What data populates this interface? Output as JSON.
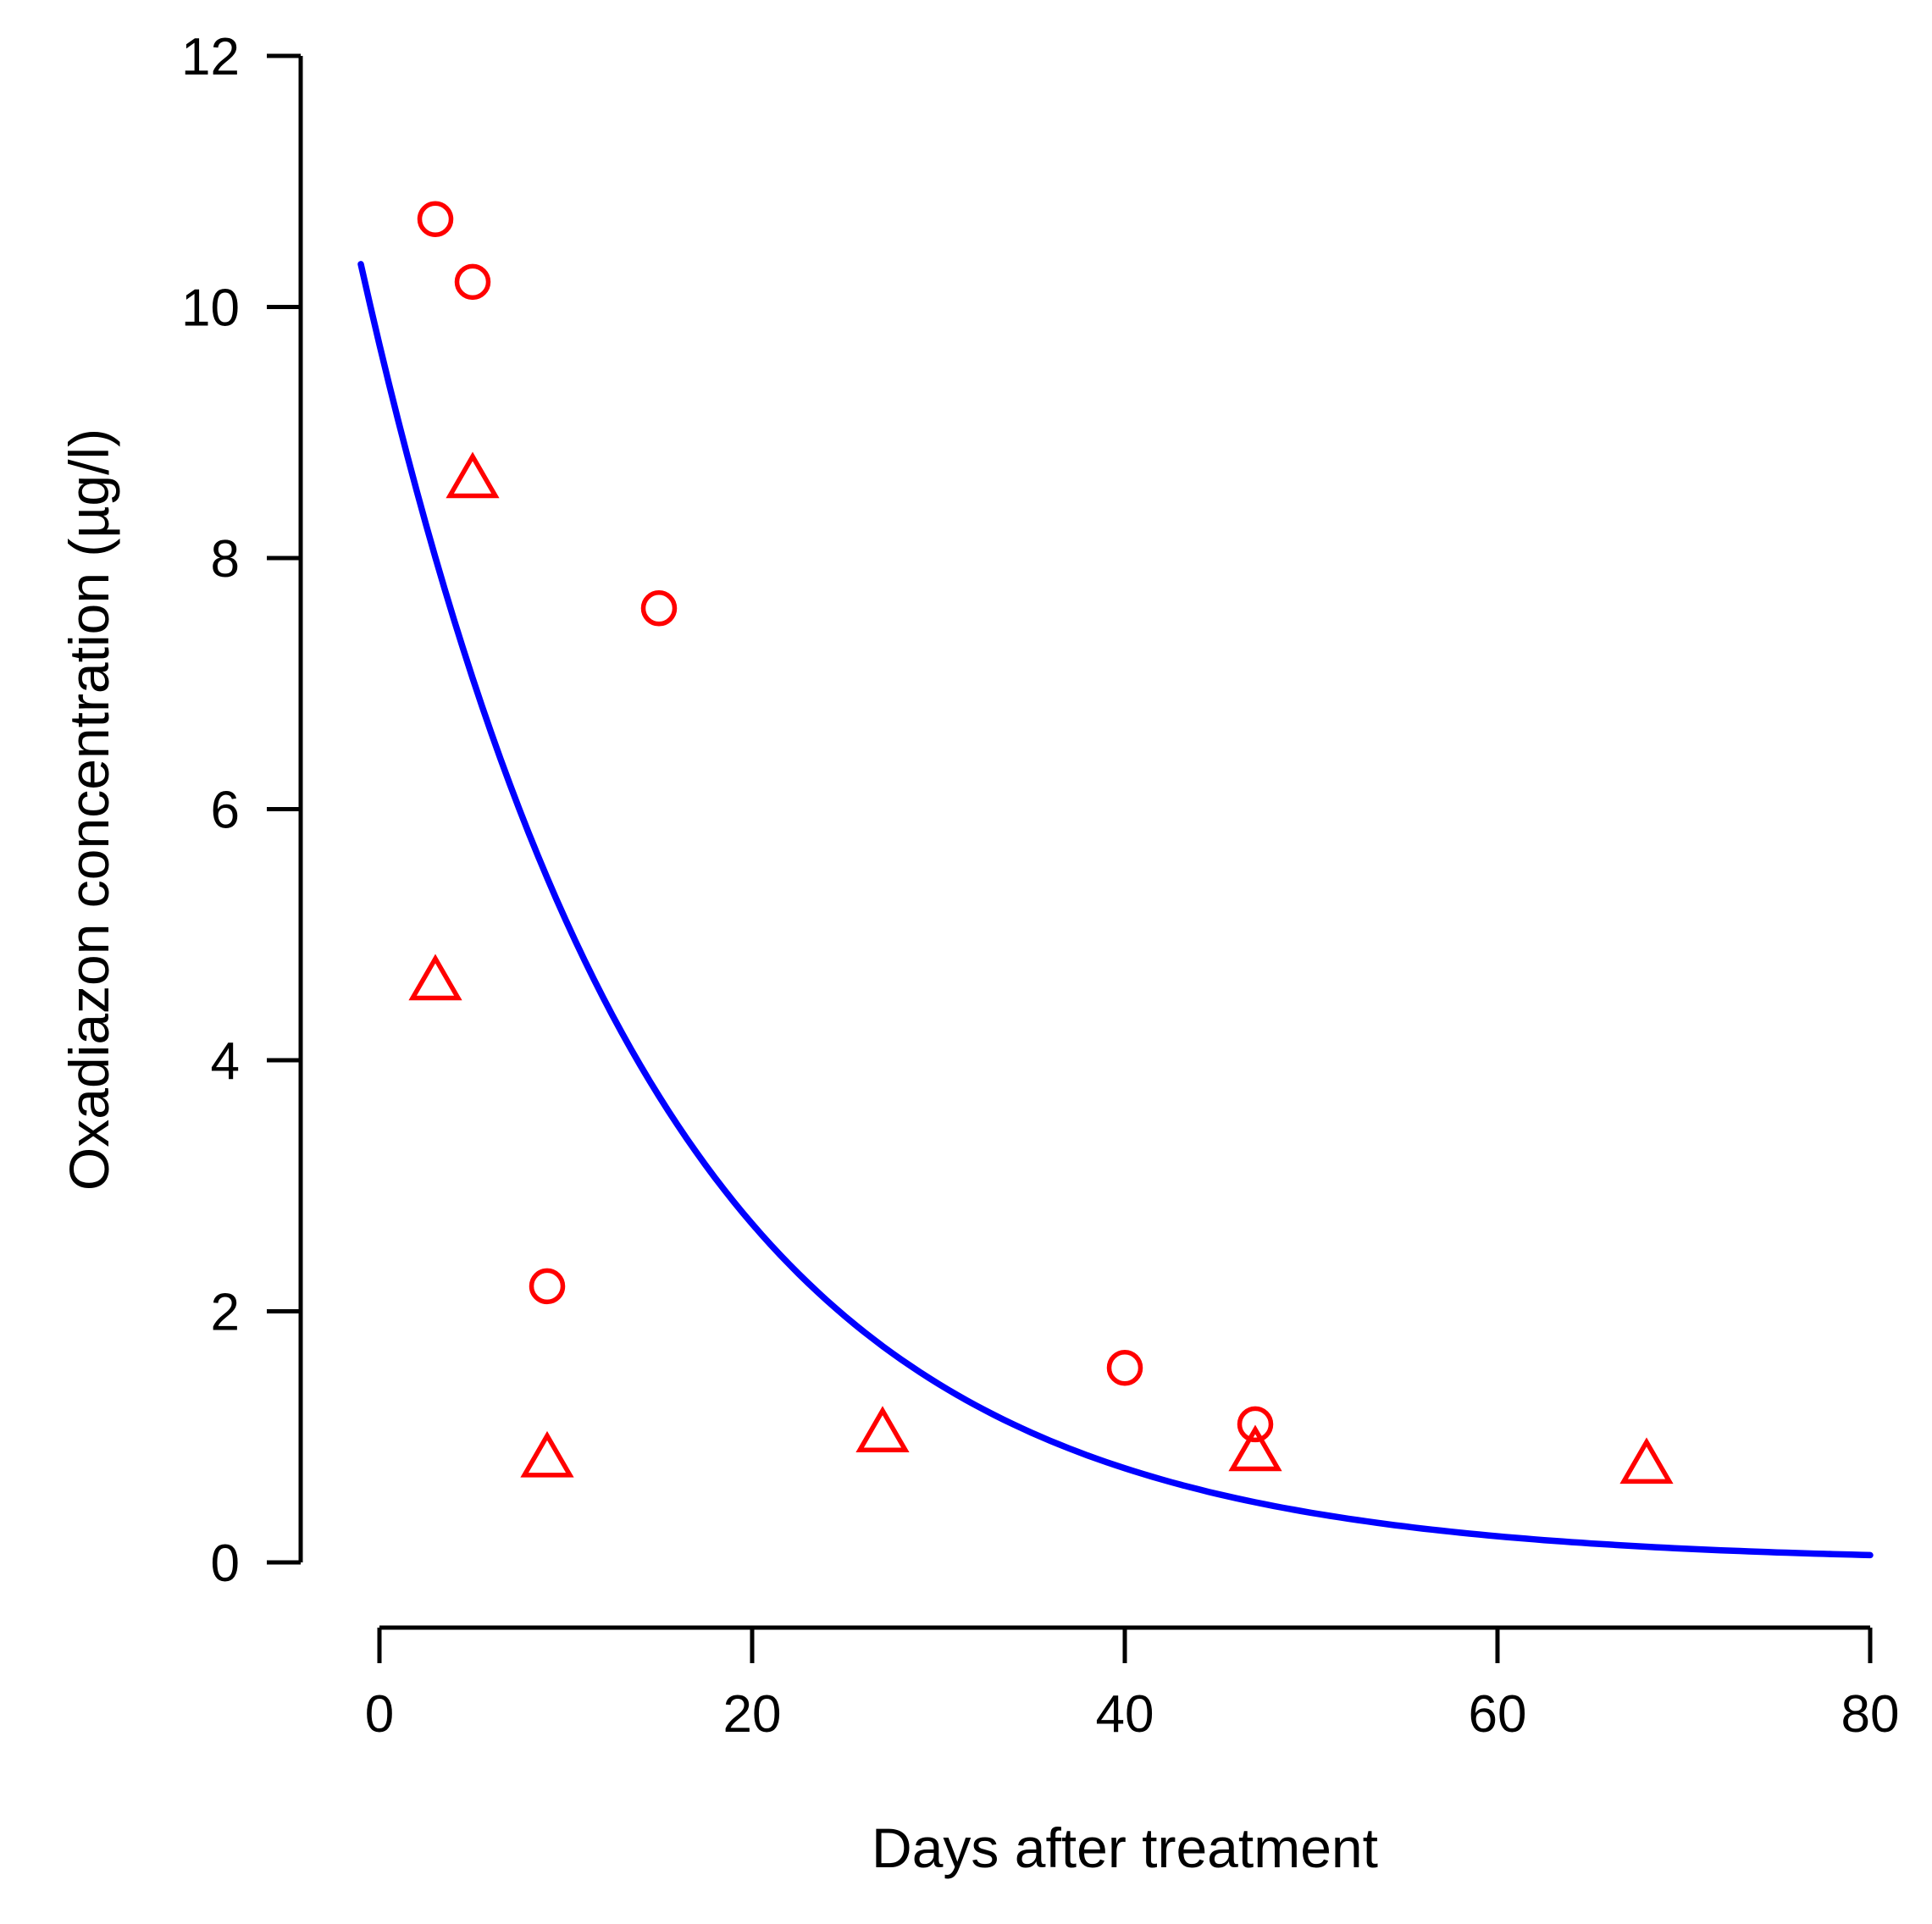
{
  "chart_data": {
    "type": "scatter",
    "title": "",
    "xlabel": "Days after treatment",
    "ylabel": "Oxadiazon concentration (µg/l)",
    "xlim": [
      0,
      80
    ],
    "ylim": [
      0,
      12
    ],
    "x_ticks": [
      0,
      20,
      40,
      60,
      80
    ],
    "y_ticks": [
      0,
      2,
      4,
      6,
      8,
      10,
      12
    ],
    "grid": false,
    "legend_position": "none",
    "series": [
      {
        "name": "circle-markers",
        "marker": "circle",
        "color": "#FF0000",
        "points": [
          [
            3,
            10.7
          ],
          [
            5,
            10.2
          ],
          [
            9,
            2.2
          ],
          [
            15,
            7.6
          ],
          [
            40,
            1.55
          ],
          [
            47,
            1.1
          ]
        ]
      },
      {
        "name": "triangle-markers",
        "marker": "triangle-up",
        "color": "#FF0000",
        "points": [
          [
            3,
            4.6
          ],
          [
            5,
            8.6
          ],
          [
            9,
            0.8
          ],
          [
            27,
            1.0
          ],
          [
            47,
            0.85
          ],
          [
            68,
            0.75
          ]
        ]
      }
    ],
    "fit_curve": {
      "name": "exponential-decay-fit",
      "model": "C(t) = C0 * exp(-k * t)",
      "C0": 9.7,
      "k": 0.064,
      "t_start": -1,
      "t_end": 80,
      "color": "#0000FF"
    }
  },
  "colors": {
    "marker": "#FF0000",
    "curve": "#0000FF",
    "axis": "#000000",
    "background": "#ffffff"
  }
}
